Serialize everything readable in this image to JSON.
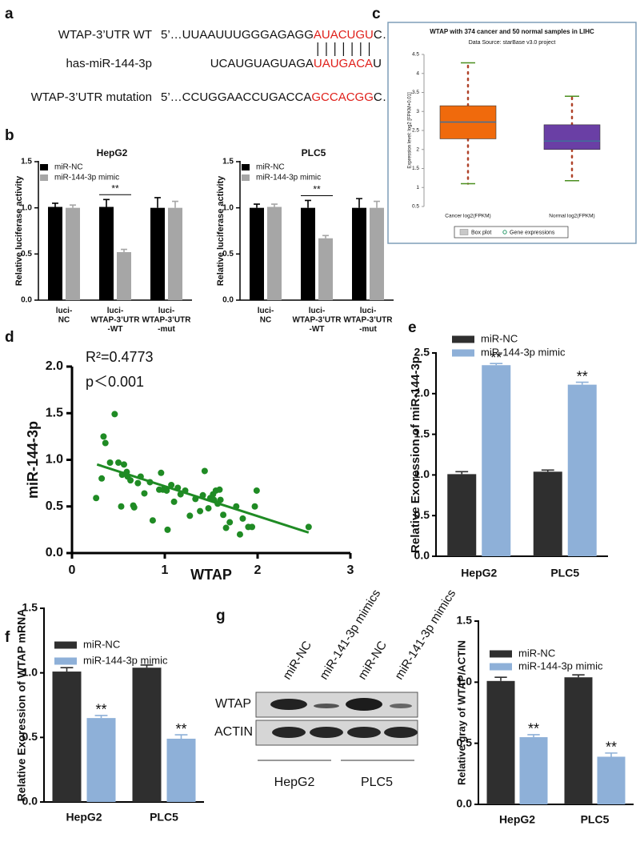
{
  "panel_labels": [
    "a",
    "b",
    "c",
    "d",
    "e",
    "f",
    "g"
  ],
  "sequence_alignment": {
    "rows": [
      {
        "label": "WTAP-3’UTR WT",
        "prefix": "5’…UUAAUUUGGGAGAGG",
        "site": "AUACUGU",
        "suffix": "C…"
      },
      {
        "label": "has-miR-144-3p",
        "prefix": "UCAUGUAGUAGA",
        "site": "UAUGACA",
        "suffix": "U"
      },
      {
        "label": "WTAP-3’UTR mutation",
        "prefix": "5’…CCUGGAACCUGACCA",
        "site": "GCCACGG",
        "suffix": "C…"
      }
    ]
  },
  "blot": {
    "lanes": [
      "miR-NC",
      "miR-141-3p mimics",
      "miR-NC",
      "miR-141-3p mimics"
    ],
    "rows": [
      "WTAP",
      "ACTIN"
    ],
    "groups": [
      "HepG2",
      "PLC5"
    ]
  },
  "chart_data": [
    {
      "type": "bar",
      "title": "HepG2",
      "y_label": "Relative luciferase activity",
      "categories": [
        "luci-\nNC",
        "luci-\nWTAP-3’UTR\n-WT",
        "luci-\nWTAP-3’UTR\n-mut"
      ],
      "series": [
        {
          "name": "miR-NC",
          "color": "#000000",
          "values": [
            1.01,
            1.01,
            1.0
          ],
          "errors": [
            0.04,
            0.08,
            0.11
          ]
        },
        {
          "name": "miR-144-3p mimic",
          "color": "#a6a6a6",
          "values": [
            1.0,
            0.52,
            1.0
          ],
          "errors": [
            0.03,
            0.03,
            0.07
          ]
        }
      ],
      "ylim": [
        0,
        1.5
      ],
      "yticks": [
        {
          "value": 0,
          "label": "0.0"
        },
        0.5,
        {
          "value": 1,
          "label": "1.0"
        },
        1.5
      ],
      "annotations": [
        {
          "text": "**",
          "category": 1
        }
      ]
    },
    {
      "type": "bar",
      "title": "PLC5",
      "y_label": "Relative luciferase activity",
      "categories": [
        "luci-\nNC",
        "luci-\nWTAP-3’UTR\n-WT",
        "luci-\nWTAP-3’UTR\n-mut"
      ],
      "series": [
        {
          "name": "miR-NC",
          "color": "#000000",
          "values": [
            1.0,
            1.0,
            1.0
          ],
          "errors": [
            0.04,
            0.08,
            0.1
          ]
        },
        {
          "name": "miR-144-3p mimic",
          "color": "#a6a6a6",
          "values": [
            1.01,
            0.67,
            1.0
          ],
          "errors": [
            0.03,
            0.03,
            0.07
          ]
        }
      ],
      "ylim": [
        0,
        1.5
      ],
      "yticks": [
        {
          "value": 0,
          "label": "0.0"
        },
        0.5,
        {
          "value": 1,
          "label": "1.0"
        },
        1.5
      ],
      "annotations": [
        {
          "text": "**",
          "category": 1
        }
      ]
    },
    {
      "type": "box",
      "title": "WTAP with 374 cancer and 50 normal samples in LIHC",
      "subtitle": "Data Source: starBase v3.0 project",
      "y_label": "Expression level: log2 [FPKM+0.01]",
      "categories": [
        "Cancer log2(FPKM)",
        "Normal log2(FPKM)"
      ],
      "boxes": [
        {
          "whislo": 1.1,
          "q1": 2.28,
          "med": 2.72,
          "q3": 3.15,
          "whishi": 4.28
        },
        {
          "whislo": 1.18,
          "q1": 2.0,
          "med": 2.22,
          "q3": 2.65,
          "whishi": 3.4
        }
      ],
      "colors": [
        "#f06a0c",
        "#6a3fa5"
      ],
      "median_color": "#3f6f9a",
      "whisker_color": "#b0432a",
      "cap_color": "#4b8f1f",
      "ylim": [
        0.5,
        4.5
      ],
      "yticks": [
        0.5,
        1,
        1.5,
        2,
        2.5,
        3,
        3.5,
        4,
        4.5
      ],
      "legend": [
        "Box plot",
        "Gene expressions"
      ]
    },
    {
      "type": "scatter",
      "x_label": "WTAP",
      "y_label": "miR-144-3p",
      "annotations": [
        "R²=0.4773",
        "p＜0.001"
      ],
      "color": "#1f8b24",
      "x": [
        0.26,
        0.32,
        0.34,
        0.36,
        0.41,
        0.46,
        0.5,
        0.53,
        0.54,
        0.56,
        0.59,
        0.6,
        0.63,
        0.66,
        0.67,
        0.71,
        0.74,
        0.78,
        0.84,
        0.87,
        0.94,
        0.96,
        0.98,
        1.02,
        1.03,
        1.07,
        1.1,
        1.14,
        1.17,
        1.22,
        1.27,
        1.33,
        1.38,
        1.41,
        1.43,
        1.47,
        1.49,
        1.52,
        1.53,
        1.55,
        1.57,
        1.59,
        1.6,
        1.63,
        1.66,
        1.7,
        1.77,
        1.81,
        1.84,
        1.9,
        1.94,
        1.97,
        1.99,
        2.55
      ],
      "y": [
        0.59,
        0.8,
        1.25,
        1.18,
        0.97,
        1.49,
        0.97,
        0.5,
        0.84,
        0.95,
        0.87,
        0.82,
        0.78,
        0.51,
        0.49,
        0.75,
        0.82,
        0.64,
        0.76,
        0.35,
        0.68,
        0.86,
        0.68,
        0.67,
        0.25,
        0.73,
        0.55,
        0.7,
        0.63,
        0.67,
        0.4,
        0.58,
        0.45,
        0.62,
        0.88,
        0.48,
        0.59,
        0.63,
        0.57,
        0.67,
        0.53,
        0.68,
        0.57,
        0.41,
        0.27,
        0.33,
        0.5,
        0.2,
        0.37,
        0.28,
        0.28,
        0.5,
        0.67,
        0.28
      ],
      "fit": {
        "x": [
          0.27,
          2.55
        ],
        "y": [
          0.95,
          0.22
        ]
      },
      "xlim": [
        0,
        3
      ],
      "xticks": [
        0,
        1,
        2,
        3
      ],
      "ylim": [
        0,
        2
      ],
      "yticks": [
        {
          "value": 0,
          "label": "0.0"
        },
        0.5,
        {
          "value": 1,
          "label": "1.0"
        },
        1.5,
        {
          "value": 2,
          "label": "2.0"
        }
      ]
    },
    {
      "type": "bar",
      "y_label": "Relative Exoression of miR-144-3p",
      "categories": [
        "HepG2",
        "PLC5"
      ],
      "series": [
        {
          "name": "miR-NC",
          "color": "#2f2f2f",
          "values": [
            1.01,
            1.04
          ],
          "errors": [
            0.03,
            0.02
          ]
        },
        {
          "name": "miR-144-3p mimic",
          "color": "#8eb0d8",
          "values": [
            2.35,
            2.11
          ],
          "errors": [
            0.02,
            0.03
          ]
        }
      ],
      "ylim": [
        0,
        2.5
      ],
      "yticks": [
        {
          "value": 0,
          "label": "0.0"
        },
        0.5,
        {
          "value": 1,
          "label": "1.0"
        },
        1.5,
        {
          "value": 2,
          "label": "2.0"
        },
        2.5
      ],
      "annotations": [
        {
          "text": "**",
          "category": 0,
          "series": 1
        },
        {
          "text": "**",
          "category": 1,
          "series": 1
        }
      ]
    },
    {
      "type": "bar",
      "y_label": "Relative Exoression of WTAP mRNA",
      "categories": [
        "HepG2",
        "PLC5"
      ],
      "series": [
        {
          "name": "miR-NC",
          "color": "#2f2f2f",
          "values": [
            1.01,
            1.04
          ],
          "errors": [
            0.03,
            0.02
          ]
        },
        {
          "name": "miR-144-3p mimic",
          "color": "#8eb0d8",
          "values": [
            0.65,
            0.49
          ],
          "errors": [
            0.02,
            0.03
          ]
        }
      ],
      "ylim": [
        0,
        1.5
      ],
      "yticks": [
        {
          "value": 0,
          "label": "0.0"
        },
        0.5,
        {
          "value": 1,
          "label": "1.0"
        },
        1.5
      ],
      "annotations": [
        {
          "text": "**",
          "category": 0,
          "series": 1
        },
        {
          "text": "**",
          "category": 1,
          "series": 1
        }
      ]
    },
    {
      "type": "bar",
      "y_label": "Relative gray of WTAP/ACTIN",
      "categories": [
        "HepG2",
        "PLC5"
      ],
      "series": [
        {
          "name": "miR-NC",
          "color": "#2f2f2f",
          "values": [
            1.01,
            1.04
          ],
          "errors": [
            0.03,
            0.02
          ]
        },
        {
          "name": "miR-144-3p mimic",
          "color": "#8eb0d8",
          "values": [
            0.55,
            0.39
          ],
          "errors": [
            0.02,
            0.03
          ]
        }
      ],
      "ylim": [
        0,
        1.5
      ],
      "yticks": [
        {
          "value": 0,
          "label": "0.0"
        },
        0.5,
        {
          "value": 1,
          "label": "1.0"
        },
        1.5
      ],
      "annotations": [
        {
          "text": "**",
          "category": 0,
          "series": 1
        },
        {
          "text": "**",
          "category": 1,
          "series": 1
        }
      ]
    }
  ]
}
